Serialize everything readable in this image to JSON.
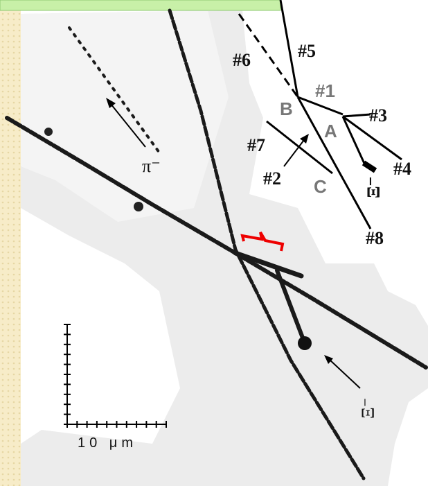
{
  "diagram": {
    "labels": [
      "#5",
      "#6",
      "#1",
      "B",
      "#3",
      "A",
      "#7",
      "#4",
      "#2",
      "C",
      "Ξ⁻",
      "#8"
    ],
    "photo_labels": [
      "π⁻",
      "Ξ⁻"
    ],
    "scale_label": "10 μm"
  }
}
